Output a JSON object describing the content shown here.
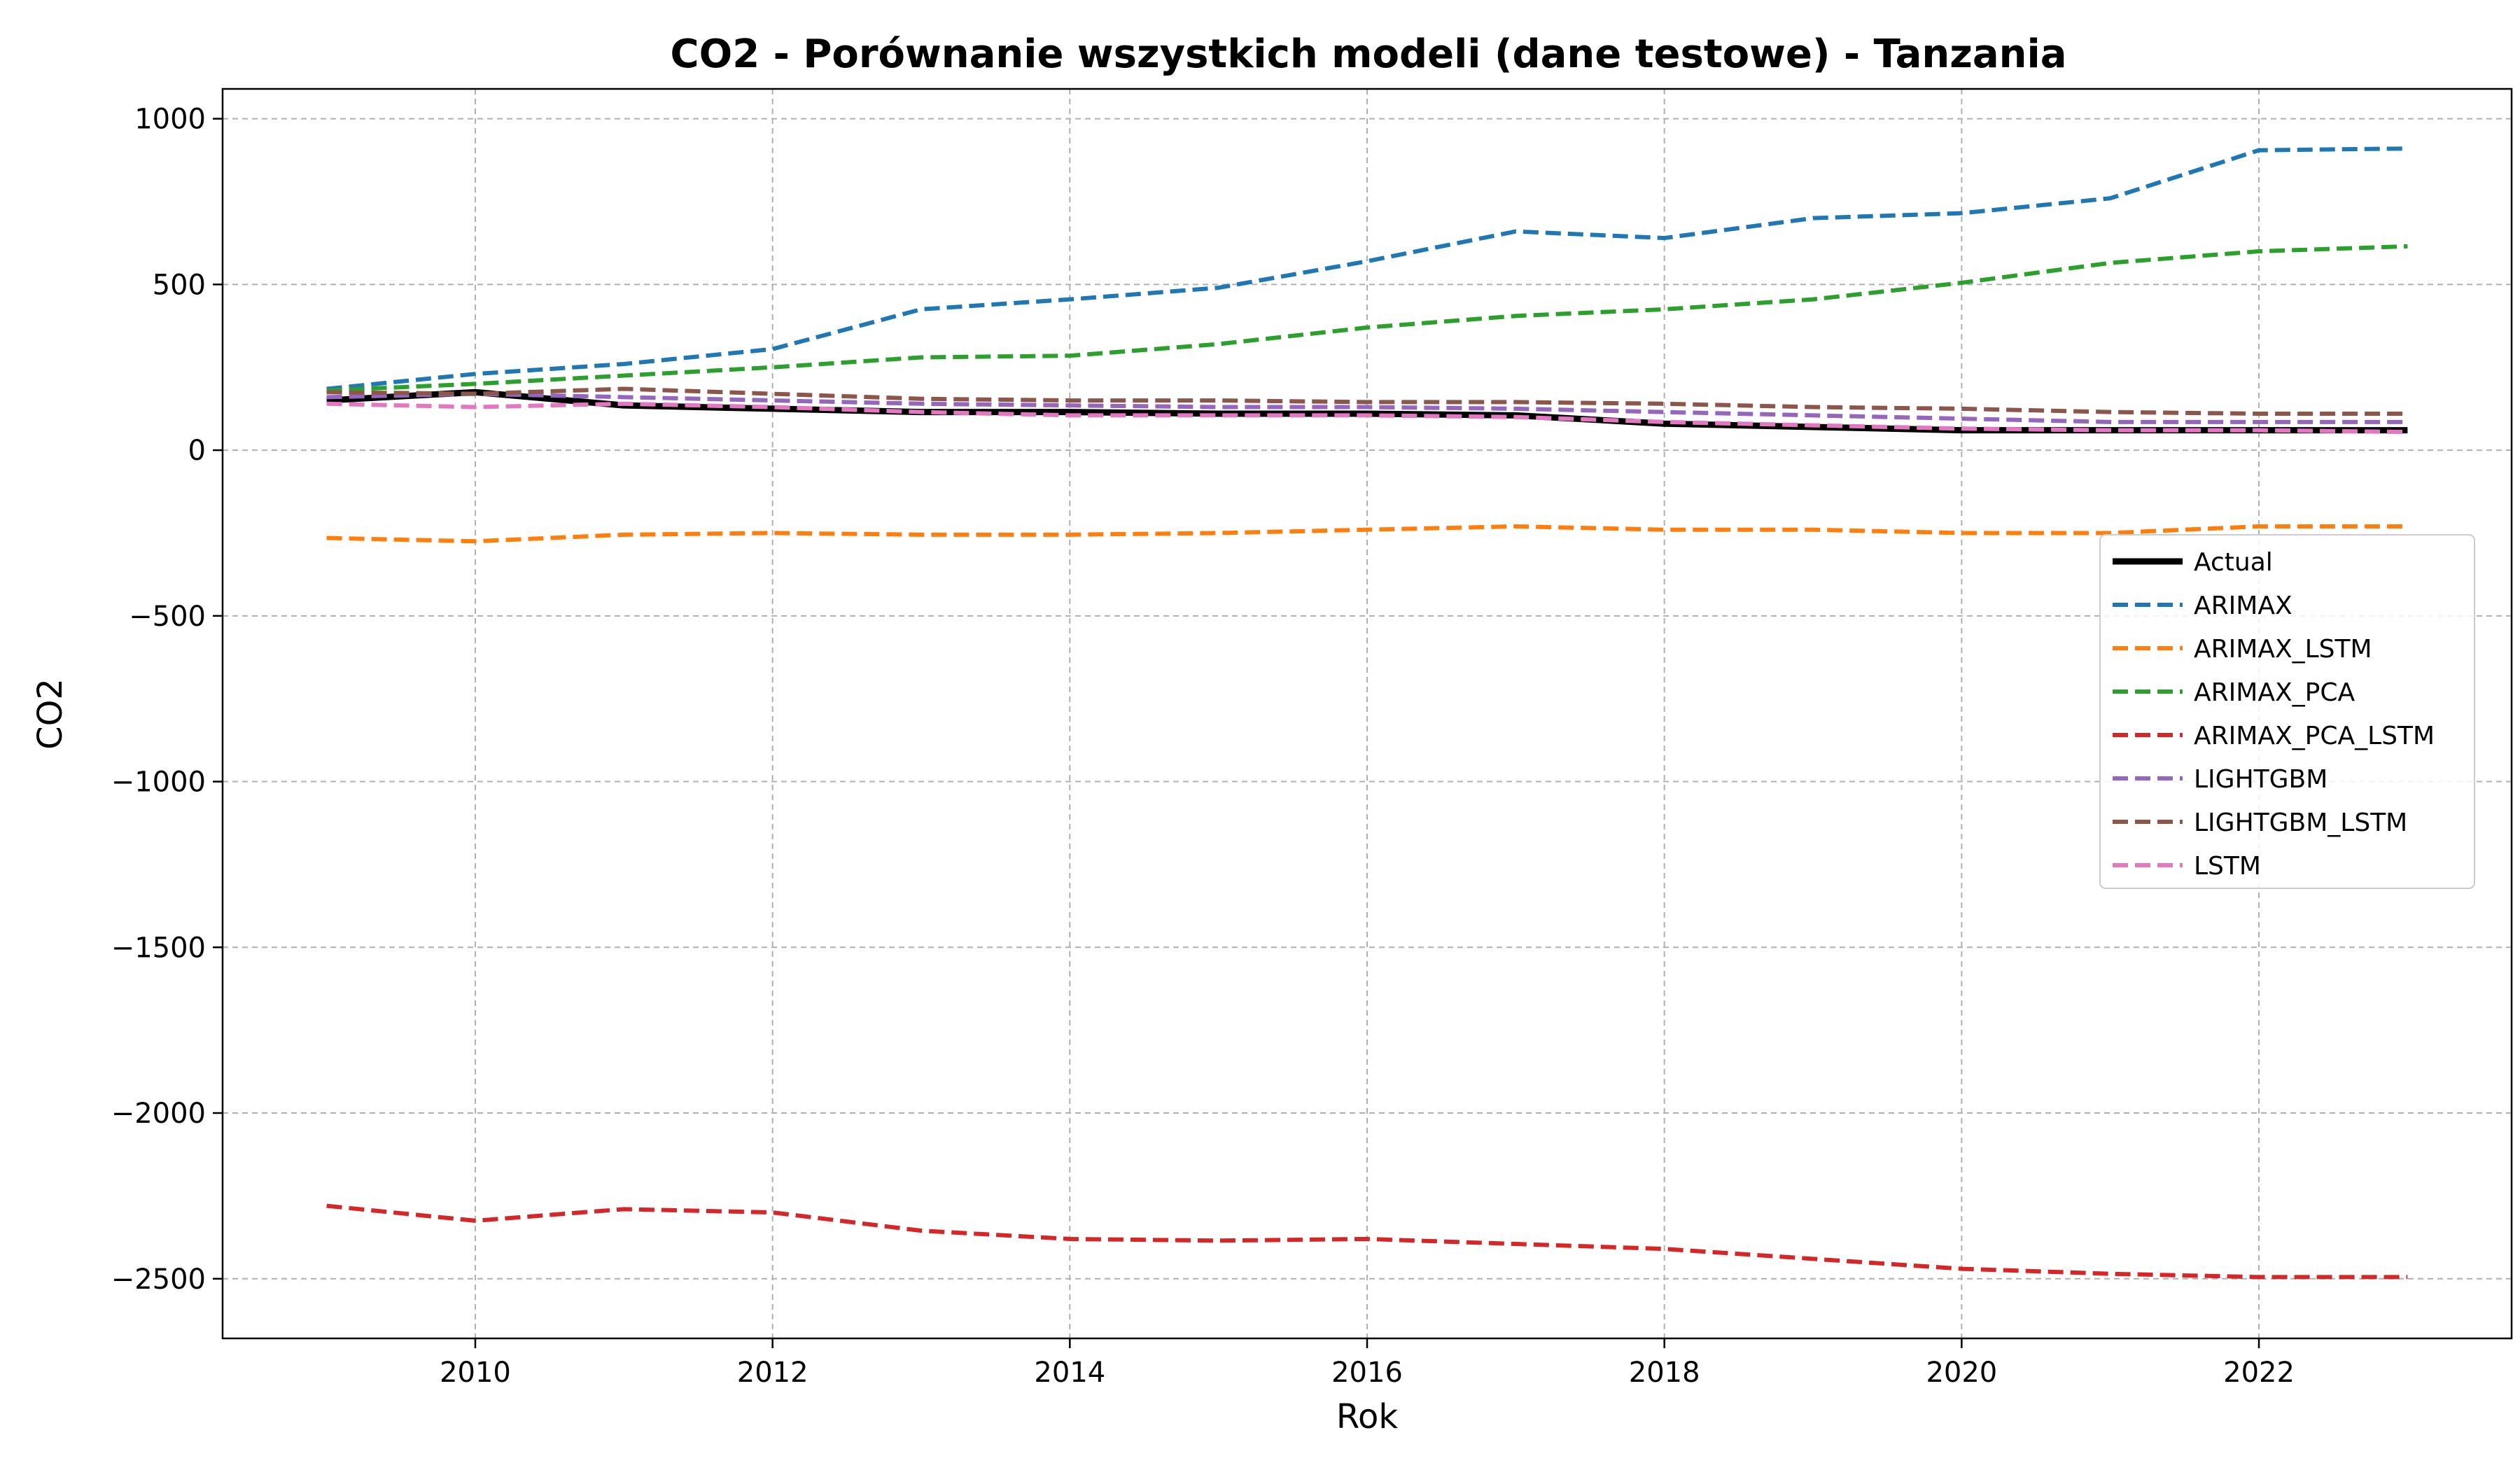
{
  "chart_data": {
    "type": "line",
    "title": "CO2 - Porównanie wszystkich modeli (dane testowe) - Tanzania",
    "xlabel": "Rok",
    "ylabel": "CO2",
    "xlim": [
      2008.3,
      2023.7
    ],
    "ylim": [
      -2680,
      1090
    ],
    "xticks": [
      2010,
      2012,
      2014,
      2016,
      2018,
      2020,
      2022
    ],
    "yticks": [
      1000,
      500,
      0,
      -500,
      -1000,
      -1500,
      -2000,
      -2500
    ],
    "ytick_labels": [
      "1000",
      "500",
      "0",
      "−500",
      "−1000",
      "−1500",
      "−2000",
      "−2500"
    ],
    "grid": true,
    "legend_position": "center-right",
    "x": [
      2009,
      2010,
      2011,
      2012,
      2013,
      2014,
      2015,
      2016,
      2017,
      2018,
      2019,
      2020,
      2021,
      2022,
      2023
    ],
    "series": [
      {
        "name": "Actual",
        "color": "#000000",
        "style": "solid",
        "values": [
          150,
          175,
          135,
          125,
          115,
          115,
          110,
          110,
          105,
          80,
          70,
          60,
          60,
          60,
          60
        ]
      },
      {
        "name": "ARIMAX",
        "color": "#1f77b4",
        "style": "dashed",
        "values": [
          185,
          230,
          260,
          305,
          425,
          455,
          490,
          570,
          660,
          640,
          700,
          715,
          760,
          905,
          910
        ]
      },
      {
        "name": "ARIMAX_LSTM",
        "color": "#ff7f0e",
        "style": "dashed",
        "values": [
          -265,
          -275,
          -255,
          -250,
          -255,
          -255,
          -250,
          -240,
          -230,
          -240,
          -240,
          -250,
          -250,
          -230,
          -230
        ]
      },
      {
        "name": "ARIMAX_PCA",
        "color": "#2ca02c",
        "style": "dashed",
        "values": [
          180,
          200,
          225,
          250,
          280,
          285,
          320,
          370,
          405,
          425,
          455,
          505,
          565,
          600,
          615
        ]
      },
      {
        "name": "ARIMAX_PCA_LSTM",
        "color": "#d62728",
        "style": "dashed",
        "values": [
          -2280,
          -2325,
          -2290,
          -2300,
          -2355,
          -2380,
          -2385,
          -2380,
          -2395,
          -2410,
          -2440,
          -2470,
          -2485,
          -2495,
          -2495
        ]
      },
      {
        "name": "LIGHTGBM",
        "color": "#9467bd",
        "style": "dashed",
        "values": [
          160,
          170,
          160,
          150,
          140,
          135,
          130,
          130,
          125,
          115,
          105,
          95,
          85,
          85,
          85
        ]
      },
      {
        "name": "LIGHTGBM_LSTM",
        "color": "#8c564b",
        "style": "dashed",
        "values": [
          175,
          170,
          185,
          170,
          155,
          150,
          150,
          145,
          145,
          140,
          130,
          125,
          115,
          110,
          110
        ]
      },
      {
        "name": "LSTM",
        "color": "#e377c2",
        "style": "dashed",
        "values": [
          140,
          130,
          140,
          130,
          115,
          105,
          105,
          105,
          100,
          85,
          75,
          65,
          60,
          60,
          55
        ]
      }
    ]
  }
}
